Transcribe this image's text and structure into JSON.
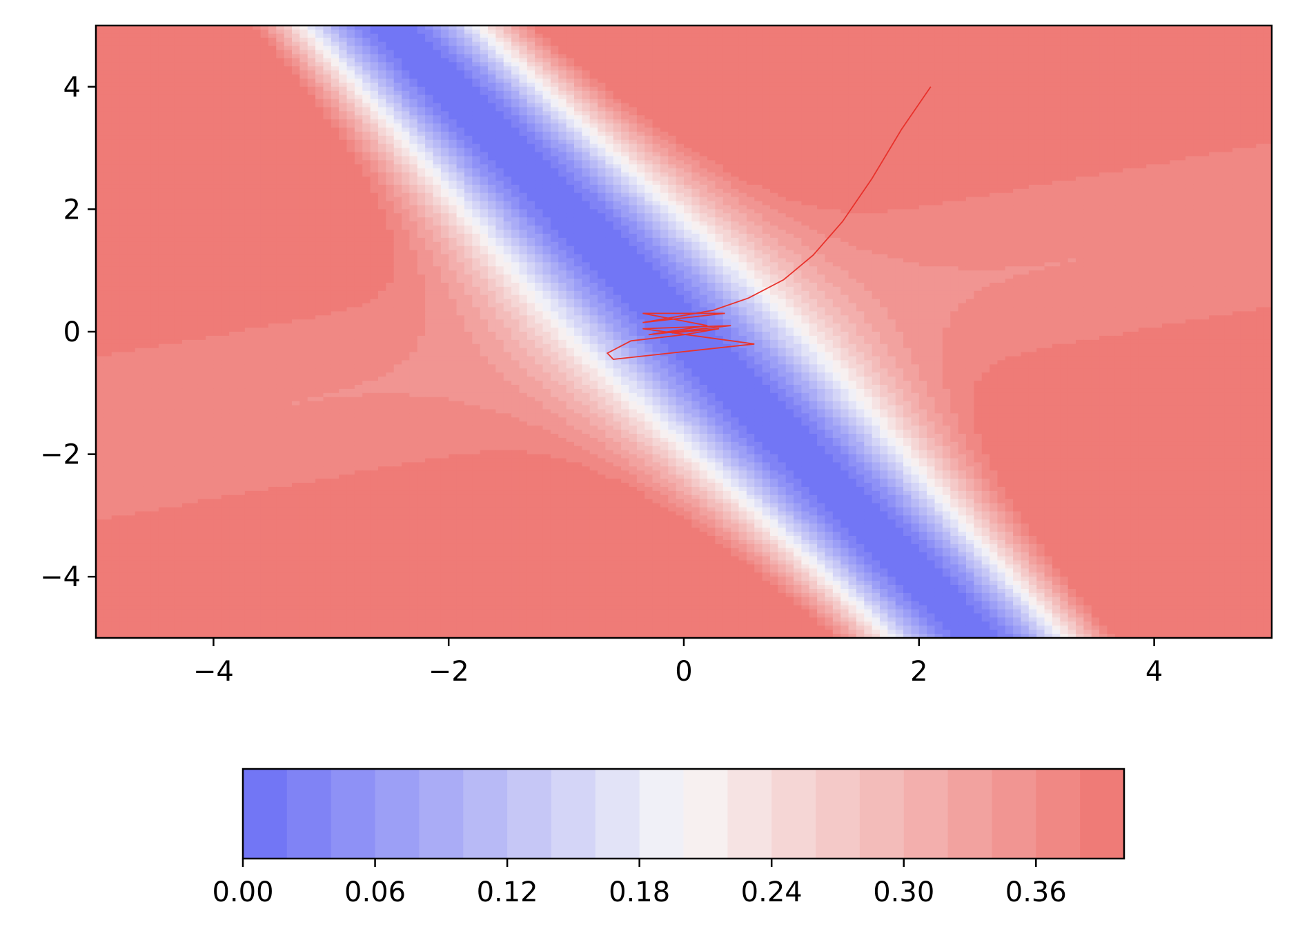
{
  "chart_data": {
    "type": "contour",
    "colormap": "coolwarm",
    "colors": {
      "low": "#6b6ff5",
      "mid": "#f7f7f7",
      "high": "#ef7470",
      "trajectory": "#e8322c",
      "contour_line": "#cc4444"
    },
    "x_ticks": [
      "−4",
      "−2",
      "0",
      "2",
      "4"
    ],
    "x_tick_values": [
      -4,
      -2,
      0,
      2,
      4
    ],
    "y_ticks": [
      "4",
      "2",
      "0",
      "−2",
      "−4"
    ],
    "y_tick_values": [
      4,
      2,
      0,
      -2,
      -4
    ],
    "xlim": [
      -5,
      5
    ],
    "ylim": [
      -5,
      5
    ],
    "colorbar": {
      "ticks": [
        "0.00",
        "0.06",
        "0.12",
        "0.18",
        "0.24",
        "0.30",
        "0.36"
      ],
      "tick_values": [
        0.0,
        0.06,
        0.12,
        0.18,
        0.24,
        0.3,
        0.36
      ],
      "levels": [
        0.0,
        0.02,
        0.04,
        0.06,
        0.08,
        0.1,
        0.12,
        0.14,
        0.16,
        0.18,
        0.2,
        0.22,
        0.24,
        0.26,
        0.28,
        0.3,
        0.32,
        0.34,
        0.36,
        0.38,
        0.4
      ],
      "range": [
        0.0,
        0.4
      ]
    },
    "trajectory": [
      [
        2.1,
        4.0
      ],
      [
        1.85,
        3.3
      ],
      [
        1.6,
        2.5
      ],
      [
        1.35,
        1.8
      ],
      [
        1.1,
        1.25
      ],
      [
        0.85,
        0.85
      ],
      [
        0.55,
        0.55
      ],
      [
        0.25,
        0.35
      ],
      [
        -0.35,
        0.15
      ],
      [
        0.35,
        0.3
      ],
      [
        -0.35,
        0.3
      ],
      [
        0.2,
        0.1
      ],
      [
        -0.3,
        -0.05
      ],
      [
        0.4,
        0.1
      ],
      [
        -0.35,
        0.05
      ],
      [
        0.6,
        -0.2
      ],
      [
        -0.6,
        -0.45
      ],
      [
        -0.65,
        -0.35
      ],
      [
        -0.45,
        -0.15
      ],
      [
        0.0,
        -0.05
      ],
      [
        0.3,
        0.05
      ],
      [
        -0.1,
        -0.02
      ],
      [
        0.0,
        0.0
      ]
    ]
  }
}
